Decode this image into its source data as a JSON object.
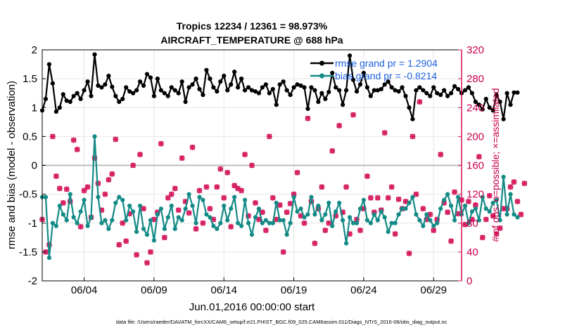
{
  "chart_data": {
    "type": "line",
    "title": [
      "Tropics 12234 / 12361 = 98.973%",
      "AIRCRAFT_TEMPERATURE @ 688 hPa"
    ],
    "xlabel": "Jun.01,2016 00:00:00 start",
    "ylabel_left": "rmse and bias (model - observation)",
    "ylabel_right": "# of obs: o=possible; ×=assimilated",
    "footnote": "data file: /Users/raeder/DAI/ATM_forcXX/CAM6_setup/f.e21.FHIST_BGC.f09_025.CAM6assim.011/Diags_NTrS_2016-06/obs_diag_output.nc",
    "x_ticks": [
      {
        "day": 4,
        "label": "06/04"
      },
      {
        "day": 9,
        "label": "06/09"
      },
      {
        "day": 14,
        "label": "06/14"
      },
      {
        "day": 19,
        "label": "06/19"
      },
      {
        "day": 24,
        "label": "06/24"
      },
      {
        "day": 29,
        "label": "06/29"
      }
    ],
    "xlim": [
      1,
      31
    ],
    "ylim_left": [
      -2,
      2
    ],
    "ylim_right": [
      0,
      320
    ],
    "yticks_left": [
      "2",
      "1.5",
      "1",
      "0.5",
      "0",
      "-0.5",
      "-1",
      "-1.5",
      "-2"
    ],
    "yticks_right": [
      "320",
      "280",
      "240",
      "200",
      "160",
      "120",
      "80",
      "40",
      "0"
    ],
    "legend": {
      "position": "top-right",
      "entries": [
        {
          "label": "rmse grand pr = 1.2904",
          "color": "#000000"
        },
        {
          "label": "bias grand pr = -0.8214",
          "color": "#138a86"
        }
      ]
    },
    "colors": {
      "rmse": "#000000",
      "bias": "#138a86",
      "obs": "#d4145a",
      "zero_line": "#bdbdbd",
      "grid": "#e6e6e6"
    },
    "series": [
      {
        "name": "rmse",
        "step_days": 0.25,
        "start_day": 1.0,
        "values": [
          0.95,
          1.15,
          1.75,
          1.42,
          0.93,
          1.0,
          1.23,
          1.12,
          1.1,
          1.2,
          1.25,
          1.15,
          1.3,
          1.45,
          1.2,
          1.92,
          1.38,
          1.35,
          1.4,
          1.55,
          1.36,
          1.2,
          1.1,
          1.15,
          1.35,
          1.28,
          1.25,
          1.3,
          1.45,
          1.38,
          1.58,
          1.52,
          1.2,
          1.5,
          1.3,
          1.25,
          1.2,
          1.35,
          1.3,
          1.25,
          1.45,
          1.1,
          1.35,
          1.4,
          1.5,
          1.32,
          1.22,
          1.65,
          1.5,
          1.35,
          1.28,
          1.45,
          1.55,
          1.3,
          1.4,
          1.62,
          1.35,
          1.5,
          1.3,
          1.35,
          1.3,
          1.28,
          1.25,
          1.35,
          1.4,
          1.25,
          1.32,
          1.05,
          1.4,
          1.45,
          1.3,
          1.22,
          1.35,
          1.4,
          1.38,
          1.35,
          0.98,
          1.35,
          1.3,
          1.1,
          1.25,
          1.15,
          1.27,
          1.6,
          1.35,
          1.3,
          1.05,
          1.3,
          1.9,
          1.48,
          1.28,
          1.4,
          1.6,
          1.35,
          1.2,
          1.3,
          1.3,
          1.32,
          1.4,
          1.45,
          1.35,
          1.3,
          1.28,
          1.35,
          1.2,
          1.0,
          0.8,
          1.3,
          1.35,
          1.3,
          1.25,
          1.2,
          1.35,
          1.25,
          1.22,
          1.3,
          1.2,
          1.25,
          1.37,
          1.32,
          1.25,
          1.3,
          1.35,
          1.25,
          1.1,
          1.05,
          0.97,
          1.15,
          1.0,
          0.95,
          1.22,
          1.1,
          0.8,
          1.25,
          1.05,
          1.26,
          1.26
        ]
      },
      {
        "name": "bias",
        "step_days": 0.25,
        "start_day": 1.0,
        "values": [
          -0.55,
          -0.55,
          -1.6,
          -1.0,
          -1.05,
          -0.7,
          -0.85,
          -0.95,
          -0.5,
          -0.9,
          -1.0,
          -0.8,
          -0.6,
          -1.05,
          -0.9,
          0.5,
          -0.55,
          -1.0,
          -0.95,
          -1.1,
          -0.95,
          -0.65,
          -0.55,
          -0.6,
          -0.95,
          -0.7,
          -0.8,
          -1.15,
          -0.7,
          -1.1,
          -1.2,
          -0.95,
          -1.3,
          -0.85,
          -0.75,
          -1.1,
          -0.9,
          -0.7,
          -1.1,
          -0.9,
          -0.95,
          -0.75,
          -0.5,
          -0.7,
          -1.0,
          -0.55,
          -0.6,
          -0.85,
          -0.9,
          -1.05,
          -1.1,
          -1.0,
          -0.7,
          -0.95,
          -0.75,
          -0.55,
          -1.0,
          -1.05,
          -0.6,
          -1.0,
          -1.2,
          -0.9,
          -0.75,
          -1.0,
          -0.95,
          -1.0,
          -1.0,
          -0.65,
          -0.95,
          -0.95,
          -1.2,
          -1.0,
          -0.55,
          -0.8,
          -0.75,
          -0.9,
          -0.85,
          -0.55,
          -0.85,
          -0.7,
          -0.95,
          -0.85,
          -0.65,
          -1.05,
          -0.8,
          -0.65,
          -0.95,
          -1.35,
          -0.9,
          -1.0,
          -1.0,
          -0.75,
          -0.6,
          -0.95,
          -1.0,
          -0.85,
          -0.95,
          -0.8,
          -0.9,
          -1.15,
          -1.0,
          -1.0,
          -0.85,
          -0.75,
          -0.75,
          -0.65,
          -0.55,
          -0.85,
          -0.95,
          -1.05,
          -0.85,
          -0.95,
          -1.05,
          -1.0,
          -0.75,
          -0.6,
          -0.5,
          -0.7,
          -0.95,
          -0.55,
          -0.85,
          -0.7,
          -1.0,
          -0.8,
          -0.75,
          -0.95,
          -0.55,
          -0.75,
          -0.8,
          -0.65,
          -0.6,
          -0.95,
          -0.2,
          -0.85,
          -0.5,
          -0.85,
          -0.9
        ]
      }
    ],
    "obs_counts": {
      "step_days": 0.25,
      "start_day": 1.0,
      "possible": [
        85,
        40,
        50,
        200,
        145,
        128,
        108,
        127,
        110,
        195,
        182,
        75,
        125,
        130,
        88,
        170,
        135,
        98,
        120,
        140,
        148,
        196,
        50,
        80,
        55,
        93,
        160,
        36,
        175,
        100,
        25,
        40,
        85,
        95,
        190,
        60,
        115,
        120,
        128,
        98,
        170,
        110,
        94,
        185,
        72,
        125,
        80,
        130,
        100,
        85,
        130,
        155,
        115,
        150,
        75,
        132,
        128,
        125,
        175,
        90,
        160,
        108,
        85,
        95,
        70,
        200,
        115,
        85,
        105,
        40,
        95,
        107,
        120,
        150,
        90,
        80,
        225,
        110,
        52,
        100,
        130,
        70,
        80,
        180,
        90,
        215,
        95,
        130,
        65,
        230,
        85,
        70,
        100,
        145,
        115,
        95,
        115,
        98,
        205,
        115,
        130,
        65,
        113,
        100,
        110,
        38,
        200,
        120,
        248,
        100,
        85,
        92,
        70,
        85,
        175,
        108,
        95,
        55,
        123,
        93,
        112,
        78,
        110,
        85,
        105,
        172,
        60,
        85,
        118,
        90,
        65,
        73,
        100,
        100,
        130,
        137,
        110,
        92,
        135
      ]
    }
  }
}
